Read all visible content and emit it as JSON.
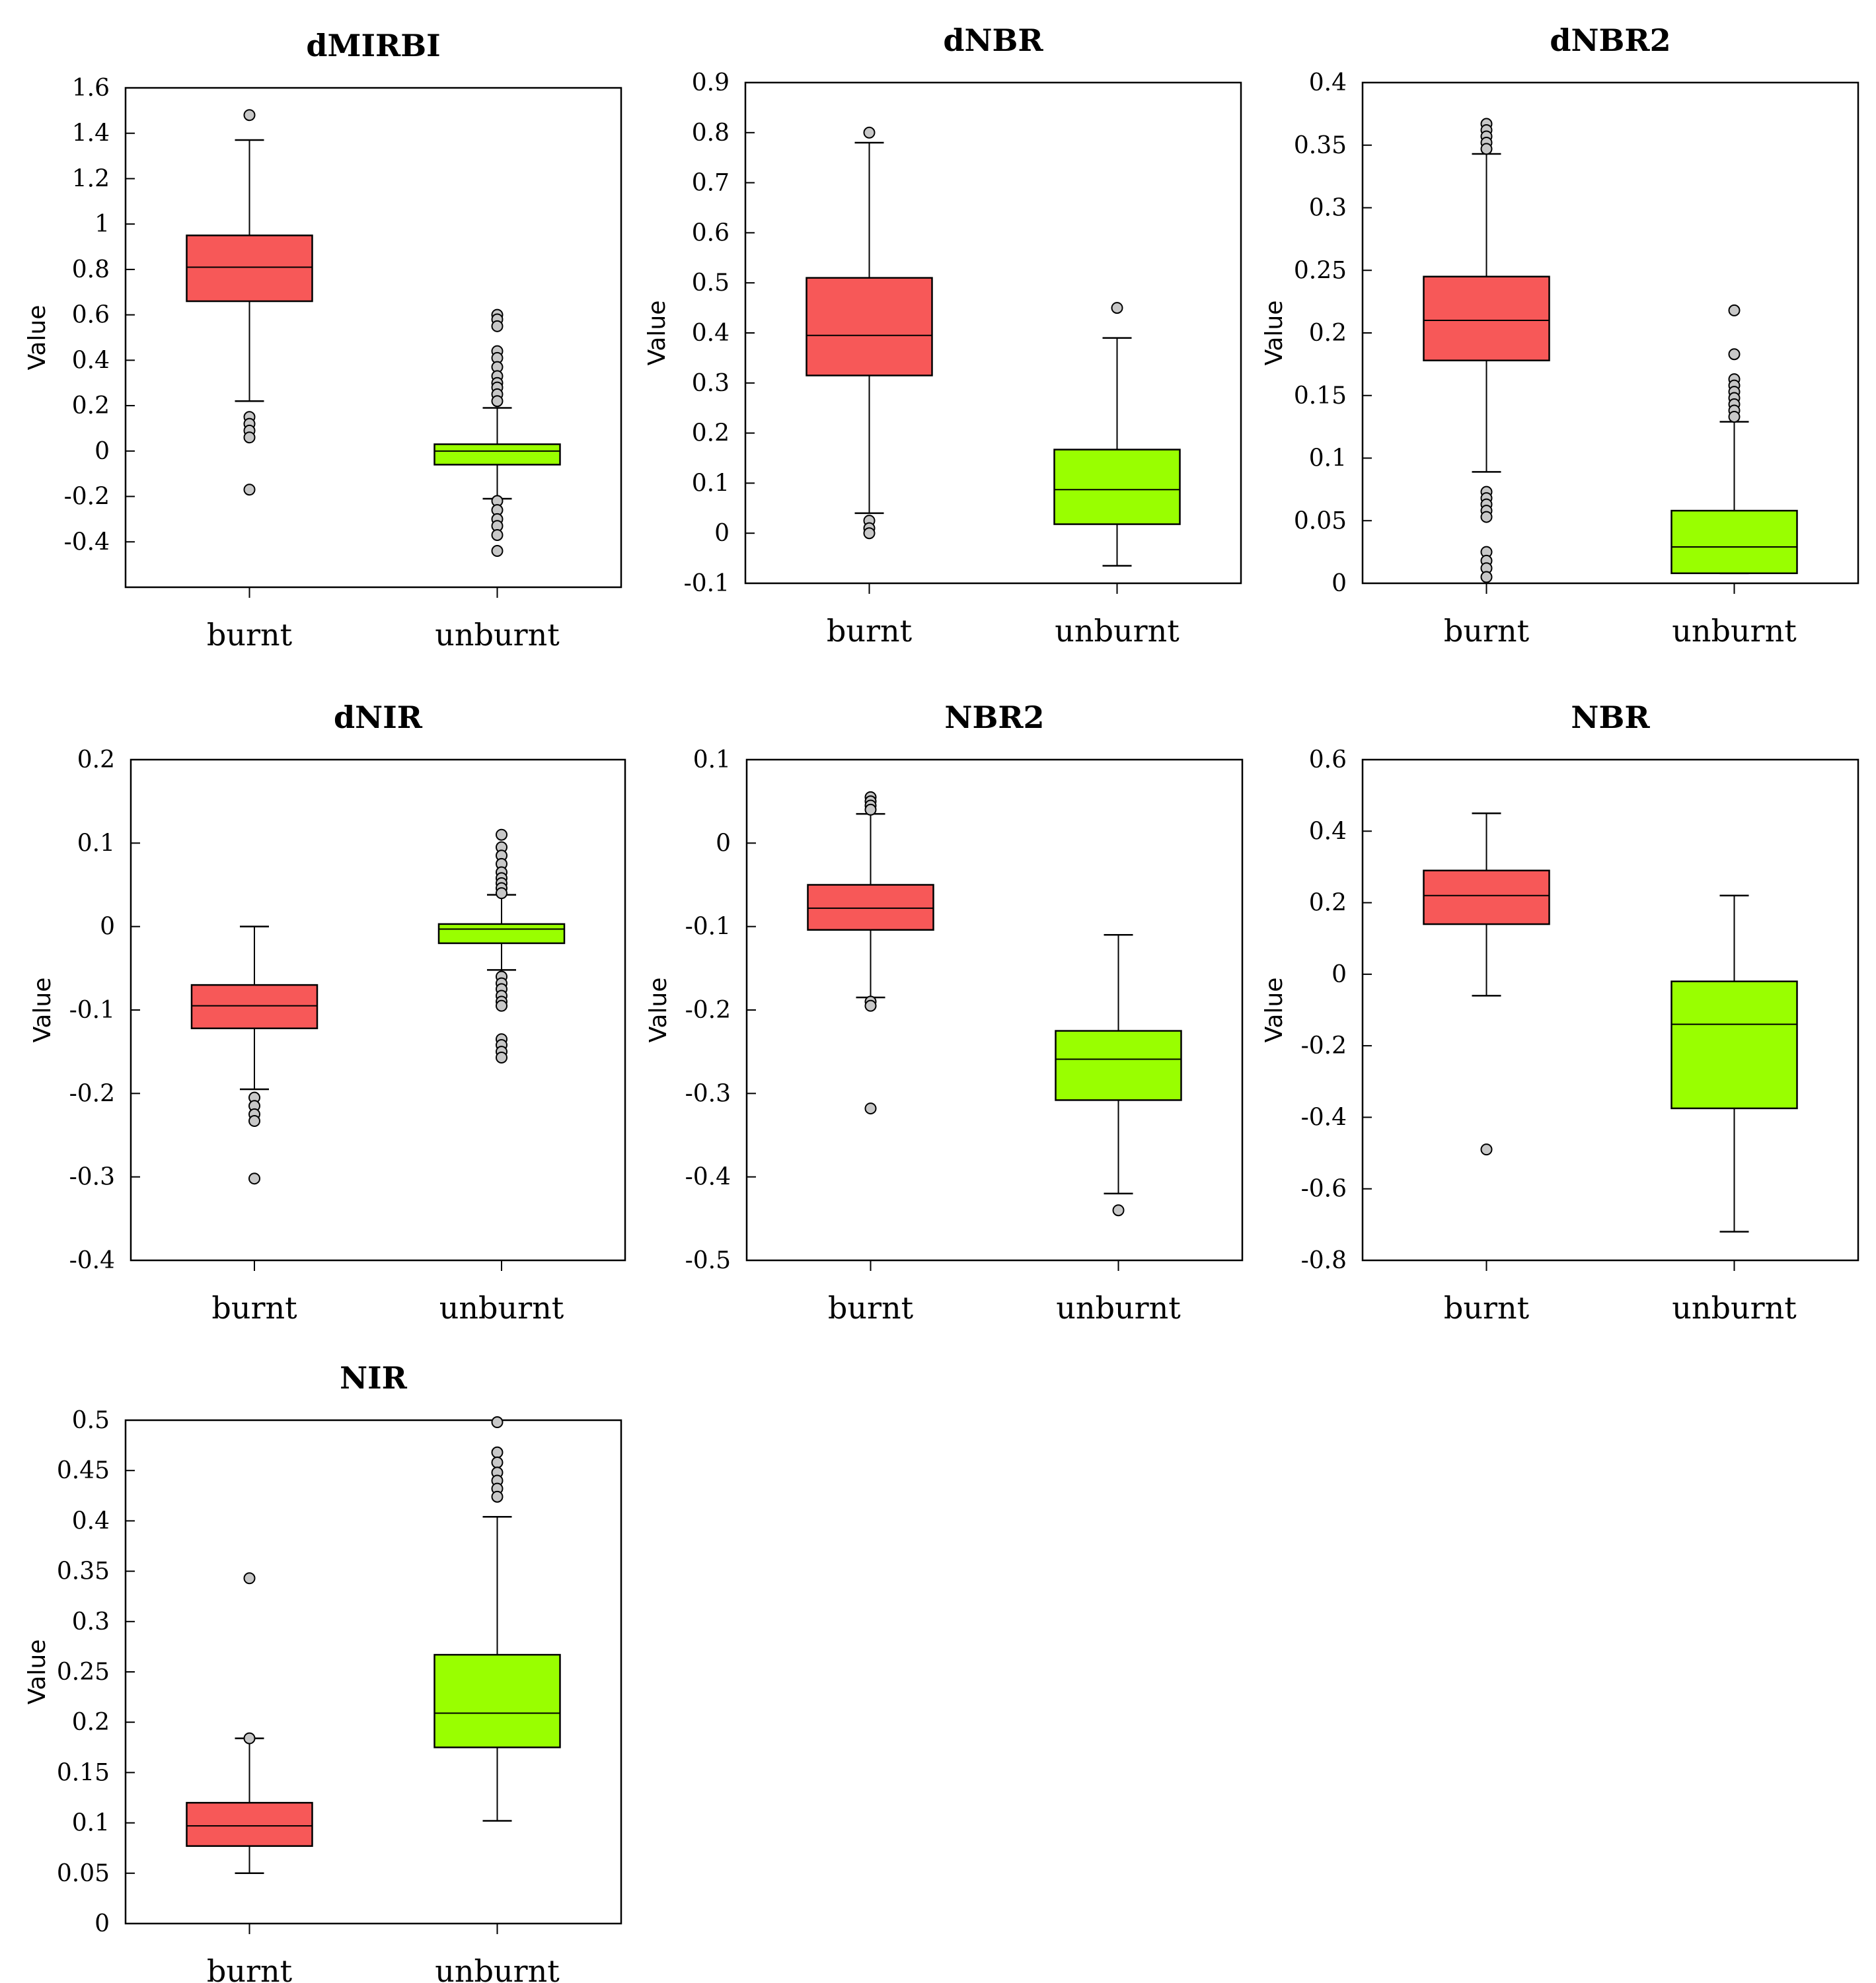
{
  "colors": {
    "burnt": "#f75858",
    "unburnt": "#99ff00",
    "outlier_fill": "#c8c8c8"
  },
  "chart_data": [
    {
      "type": "box",
      "title": "dMIRBI",
      "ylabel": "Value",
      "categories": [
        "burnt",
        "unburnt"
      ],
      "ylim": [
        -0.6,
        1.6
      ],
      "yticks": [
        -0.4,
        -0.2,
        0,
        0.2,
        0.4,
        0.6,
        0.8,
        1,
        1.2,
        1.4,
        1.6
      ],
      "ytick_labels": [
        "-0.4",
        "-0.2",
        "0",
        "0.2",
        "0.4",
        "0.6",
        "0.8",
        "1",
        "1.2",
        "1.4",
        "1.6"
      ],
      "series": [
        {
          "name": "burnt",
          "whisker_low": 0.22,
          "q1": 0.66,
          "median": 0.81,
          "q3": 0.95,
          "whisker_high": 1.37,
          "outliers": [
            1.48,
            0.15,
            0.12,
            0.09,
            0.06,
            -0.17
          ]
        },
        {
          "name": "unburnt",
          "whisker_low": -0.21,
          "q1": -0.06,
          "median": 0.0,
          "q3": 0.03,
          "whisker_high": 0.19,
          "outliers": [
            0.6,
            0.58,
            0.55,
            0.44,
            0.41,
            0.37,
            0.33,
            0.3,
            0.28,
            0.25,
            0.22,
            -0.22,
            -0.26,
            -0.3,
            -0.33,
            -0.37,
            -0.44
          ]
        }
      ]
    },
    {
      "type": "box",
      "title": "dNBR",
      "ylabel": "Value",
      "categories": [
        "burnt",
        "unburnt"
      ],
      "ylim": [
        -0.1,
        0.9
      ],
      "yticks": [
        -0.1,
        0,
        0.1,
        0.2,
        0.3,
        0.4,
        0.5,
        0.6,
        0.7,
        0.8,
        0.9
      ],
      "ytick_labels": [
        "-0.1",
        "0",
        "0.1",
        "0.2",
        "0.3",
        "0.4",
        "0.5",
        "0.6",
        "0.7",
        "0.8",
        "0.9"
      ],
      "series": [
        {
          "name": "burnt",
          "whisker_low": 0.04,
          "q1": 0.315,
          "median": 0.395,
          "q3": 0.51,
          "whisker_high": 0.78,
          "outliers": [
            0.8,
            0.025,
            0.01,
            0.0
          ]
        },
        {
          "name": "unburnt",
          "whisker_low": -0.065,
          "q1": 0.018,
          "median": 0.087,
          "q3": 0.167,
          "whisker_high": 0.39,
          "outliers": [
            0.45
          ]
        }
      ]
    },
    {
      "type": "box",
      "title": "dNBR2",
      "ylabel": "Value",
      "categories": [
        "burnt",
        "unburnt"
      ],
      "ylim": [
        0,
        0.4
      ],
      "yticks": [
        0,
        0.05,
        0.1,
        0.15,
        0.2,
        0.25,
        0.3,
        0.35,
        0.4
      ],
      "ytick_labels": [
        "0",
        "0.05",
        "0.1",
        "0.15",
        "0.2",
        "0.25",
        "0.3",
        "0.35",
        "0.4"
      ],
      "series": [
        {
          "name": "burnt",
          "whisker_low": 0.089,
          "q1": 0.178,
          "median": 0.21,
          "q3": 0.245,
          "whisker_high": 0.343,
          "outliers": [
            0.367,
            0.362,
            0.357,
            0.352,
            0.347,
            0.073,
            0.068,
            0.063,
            0.058,
            0.053,
            0.025,
            0.018,
            0.012,
            0.005
          ]
        },
        {
          "name": "unburnt",
          "whisker_low": 0.008,
          "q1": 0.008,
          "median": 0.029,
          "q3": 0.058,
          "whisker_high": 0.129,
          "outliers": [
            0.218,
            0.183,
            0.163,
            0.158,
            0.153,
            0.148,
            0.143,
            0.138,
            0.133
          ]
        }
      ]
    },
    {
      "type": "box",
      "title": "dNIR",
      "ylabel": "Value",
      "categories": [
        "burnt",
        "unburnt"
      ],
      "ylim": [
        -0.4,
        0.2
      ],
      "yticks": [
        -0.4,
        -0.3,
        -0.2,
        -0.1,
        0,
        0.1,
        0.2
      ],
      "ytick_labels": [
        "-0.4",
        "-0.3",
        "-0.2",
        "-0.1",
        "0",
        "0.1",
        "0.2"
      ],
      "series": [
        {
          "name": "burnt",
          "whisker_low": -0.195,
          "q1": -0.122,
          "median": -0.095,
          "q3": -0.07,
          "whisker_high": 0.0,
          "outliers": [
            -0.205,
            -0.215,
            -0.225,
            -0.233,
            -0.302
          ]
        },
        {
          "name": "unburnt",
          "whisker_low": -0.052,
          "q1": -0.02,
          "median": -0.003,
          "q3": 0.003,
          "whisker_high": 0.038,
          "outliers": [
            0.11,
            0.095,
            0.085,
            0.075,
            0.065,
            0.058,
            0.052,
            0.046,
            0.04,
            -0.06,
            -0.068,
            -0.075,
            -0.083,
            -0.09,
            -0.095,
            -0.135,
            -0.142,
            -0.15,
            -0.157
          ]
        }
      ]
    },
    {
      "type": "box",
      "title": "NBR2",
      "ylabel": "Value",
      "categories": [
        "burnt",
        "unburnt"
      ],
      "ylim": [
        -0.5,
        0.1
      ],
      "yticks": [
        -0.5,
        -0.4,
        -0.3,
        -0.2,
        -0.1,
        0,
        0.1
      ],
      "ytick_labels": [
        "-0.5",
        "-0.4",
        "-0.3",
        "-0.2",
        "-0.1",
        "0",
        "0.1"
      ],
      "series": [
        {
          "name": "burnt",
          "whisker_low": -0.185,
          "q1": -0.104,
          "median": -0.078,
          "q3": -0.05,
          "whisker_high": 0.035,
          "outliers": [
            0.055,
            0.05,
            0.045,
            0.04,
            -0.19,
            -0.195,
            -0.318
          ]
        },
        {
          "name": "unburnt",
          "whisker_low": -0.42,
          "q1": -0.308,
          "median": -0.259,
          "q3": -0.225,
          "whisker_high": -0.11,
          "outliers": [
            -0.44
          ]
        }
      ]
    },
    {
      "type": "box",
      "title": "NBR",
      "ylabel": "Value",
      "categories": [
        "burnt",
        "unburnt"
      ],
      "ylim": [
        -0.8,
        0.6
      ],
      "yticks": [
        -0.8,
        -0.6,
        -0.4,
        -0.2,
        0,
        0.2,
        0.4,
        0.6
      ],
      "ytick_labels": [
        "-0.8",
        "-0.6",
        "-0.4",
        "-0.2",
        "0",
        "0.2",
        "0.4",
        "0.6"
      ],
      "series": [
        {
          "name": "burnt",
          "whisker_low": -0.06,
          "q1": 0.14,
          "median": 0.22,
          "q3": 0.29,
          "whisker_high": 0.45,
          "outliers": [
            -0.49
          ]
        },
        {
          "name": "unburnt",
          "whisker_low": -0.72,
          "q1": -0.375,
          "median": -0.14,
          "q3": -0.02,
          "whisker_high": 0.22,
          "outliers": []
        }
      ]
    },
    {
      "type": "box",
      "title": "NIR",
      "ylabel": "Value",
      "categories": [
        "burnt",
        "unburnt"
      ],
      "ylim": [
        0,
        0.5
      ],
      "yticks": [
        0,
        0.05,
        0.1,
        0.15,
        0.2,
        0.25,
        0.3,
        0.35,
        0.4,
        0.45,
        0.5
      ],
      "ytick_labels": [
        "0",
        "0.05",
        "0.1",
        "0.15",
        "0.2",
        "0.25",
        "0.3",
        "0.35",
        "0.4",
        "0.45",
        "0.5"
      ],
      "series": [
        {
          "name": "burnt",
          "whisker_low": 0.05,
          "q1": 0.077,
          "median": 0.097,
          "q3": 0.12,
          "whisker_high": 0.184,
          "outliers": [
            0.343,
            0.184
          ]
        },
        {
          "name": "unburnt",
          "whisker_low": 0.102,
          "q1": 0.175,
          "median": 0.209,
          "q3": 0.267,
          "whisker_high": 0.404,
          "outliers": [
            0.498,
            0.468,
            0.458,
            0.448,
            0.44,
            0.432,
            0.424
          ]
        }
      ]
    }
  ]
}
